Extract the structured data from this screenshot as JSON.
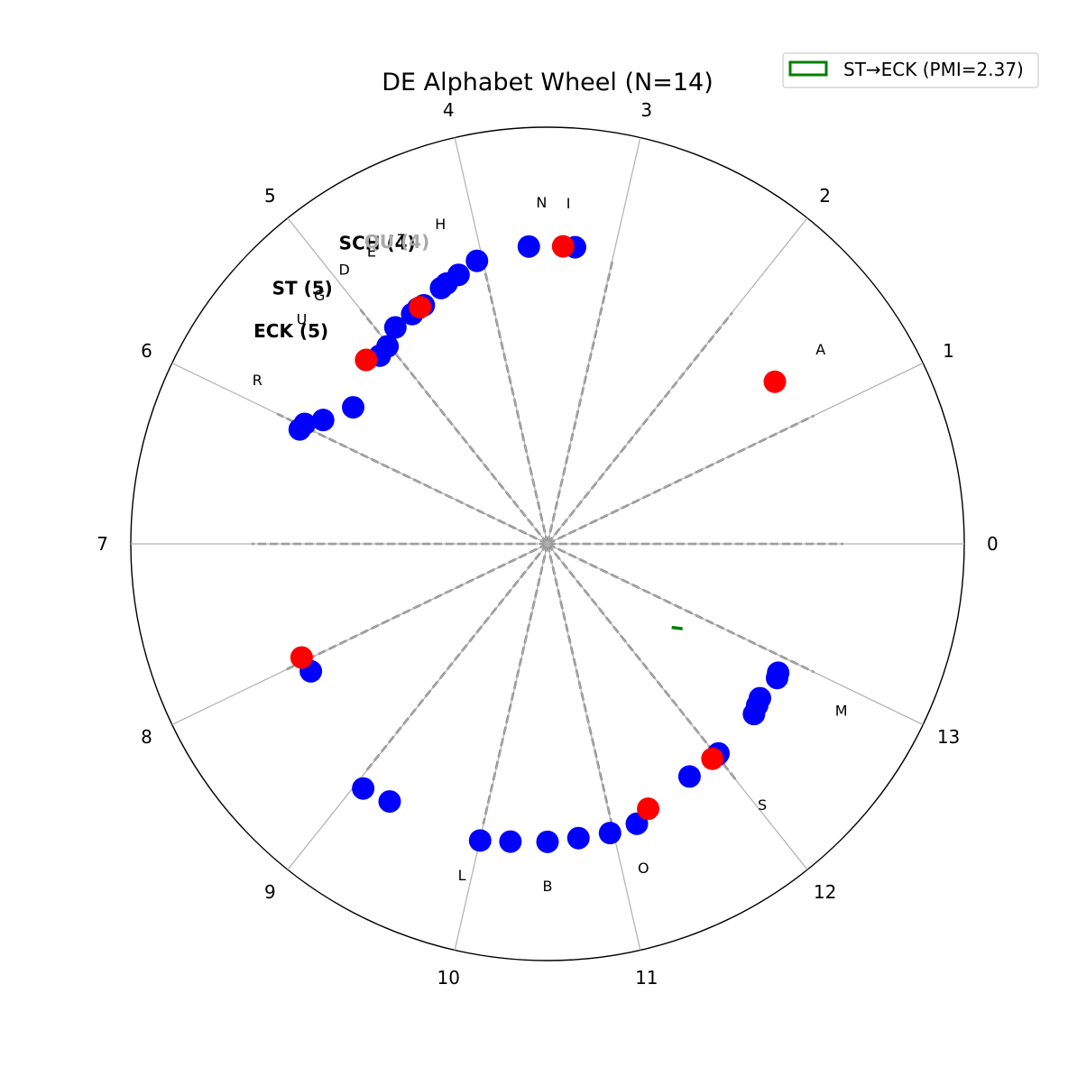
{
  "chart_data": {
    "type": "scatter",
    "projection": "polar",
    "title": "DE Alphabet Wheel (N=14)",
    "sectors": 14,
    "theta_ticks": [
      "0",
      "1",
      "2",
      "3",
      "4",
      "5",
      "6",
      "7",
      "8",
      "9",
      "10",
      "11",
      "12",
      "13"
    ],
    "theta_direction": "counterclockwise",
    "theta_zero": "east",
    "r_range": [
      0,
      1
    ],
    "grid": true,
    "legend": {
      "placement": "top-right",
      "entries": [
        {
          "label": "ST→ECK (PMI=2.37)",
          "color": "#008000",
          "style": "outline-box"
        }
      ]
    },
    "letter_labels": [
      {
        "text": "A",
        "angle": 35.5,
        "r": 0.805
      },
      {
        "text": "N",
        "angle": 91.0,
        "r": 0.82
      },
      {
        "text": "I",
        "angle": 86.5,
        "r": 0.82
      },
      {
        "text": "H",
        "angle": 108.5,
        "r": 0.81
      },
      {
        "text": "T",
        "angle": 115.5,
        "r": 0.81
      },
      {
        "text": "E",
        "angle": 121.0,
        "r": 0.82
      },
      {
        "text": "D",
        "angle": 126.5,
        "r": 0.82
      },
      {
        "text": "G",
        "angle": 132.5,
        "r": 0.81
      },
      {
        "text": "U",
        "angle": 137.5,
        "r": 0.8
      },
      {
        "text": "R",
        "angle": 150.5,
        "r": 0.8
      },
      {
        "text": "L",
        "angle": 255.5,
        "r": 0.82
      },
      {
        "text": "B",
        "angle": 270.0,
        "r": 0.82
      },
      {
        "text": "O",
        "angle": 286.5,
        "r": 0.81
      },
      {
        "text": "S",
        "angle": 309.5,
        "r": 0.81
      },
      {
        "text": "M",
        "angle": 330.5,
        "r": 0.81
      }
    ],
    "ngram_labels": [
      {
        "text": "SCH (4)",
        "angle": 119.5,
        "r": 0.83,
        "style": "bold"
      },
      {
        "text": "QU (4)",
        "angle": 116.5,
        "r": 0.81,
        "style": "faint"
      },
      {
        "text": "ST (5)",
        "angle": 133.8,
        "r": 0.85,
        "style": "bold"
      },
      {
        "text": "ECK (5)",
        "angle": 140.3,
        "r": 0.8,
        "style": "bold"
      }
    ],
    "spokes": [
      {
        "angle": 0,
        "r": 0.71
      },
      {
        "angle": 25.7,
        "r": 0.71
      },
      {
        "angle": 51.4,
        "r": 0.71
      },
      {
        "angle": 77.1,
        "r": 0.7
      },
      {
        "angle": 102.9,
        "r": 0.72
      },
      {
        "angle": 128.6,
        "r": 0.72
      },
      {
        "angle": 154.3,
        "r": 0.72
      },
      {
        "angle": 180,
        "r": 0.71
      },
      {
        "angle": 205.7,
        "r": 0.7
      },
      {
        "angle": 231.4,
        "r": 0.7
      },
      {
        "angle": 257.1,
        "r": 0.69
      },
      {
        "angle": 282.9,
        "r": 0.7
      },
      {
        "angle": 308.6,
        "r": 0.73
      },
      {
        "angle": 334.3,
        "r": 0.71
      }
    ],
    "series": [
      {
        "color": "#0000ff",
        "points": [
          {
            "angle": 93.6,
            "r": 0.715
          },
          {
            "angle": 84.7,
            "r": 0.715
          },
          {
            "angle": 104.0,
            "r": 0.7
          },
          {
            "angle": 108.3,
            "r": 0.68
          },
          {
            "angle": 111.2,
            "r": 0.67
          },
          {
            "angle": 112.6,
            "r": 0.665
          },
          {
            "angle": 117.4,
            "r": 0.645
          },
          {
            "angle": 118.8,
            "r": 0.645
          },
          {
            "angle": 120.5,
            "r": 0.64
          },
          {
            "angle": 125.1,
            "r": 0.635
          },
          {
            "angle": 129.0,
            "r": 0.61
          },
          {
            "angle": 131.7,
            "r": 0.605
          },
          {
            "angle": 144.9,
            "r": 0.57
          },
          {
            "angle": 151.1,
            "r": 0.615
          },
          {
            "angle": 153.7,
            "r": 0.65
          },
          {
            "angle": 155.2,
            "r": 0.655
          },
          {
            "angle": 208.3,
            "r": 0.645
          },
          {
            "angle": 233.0,
            "r": 0.735
          },
          {
            "angle": 238.5,
            "r": 0.725
          },
          {
            "angle": 257.2,
            "r": 0.73
          },
          {
            "angle": 262.9,
            "r": 0.72
          },
          {
            "angle": 270.0,
            "r": 0.715
          },
          {
            "angle": 276.0,
            "r": 0.71
          },
          {
            "angle": 282.2,
            "r": 0.71
          },
          {
            "angle": 287.7,
            "r": 0.705
          },
          {
            "angle": 301.4,
            "r": 0.654
          },
          {
            "angle": 308.8,
            "r": 0.65
          },
          {
            "angle": 309.2,
            "r": 0.649
          },
          {
            "angle": 320.5,
            "r": 0.642
          },
          {
            "angle": 322.4,
            "r": 0.635
          },
          {
            "angle": 324.0,
            "r": 0.63
          },
          {
            "angle": 329.7,
            "r": 0.638
          },
          {
            "angle": 330.8,
            "r": 0.634
          }
        ]
      },
      {
        "color": "#ff0000",
        "points": [
          {
            "angle": 35.5,
            "r": 0.67
          },
          {
            "angle": 87.0,
            "r": 0.715
          },
          {
            "angle": 118.3,
            "r": 0.645
          },
          {
            "angle": 134.6,
            "r": 0.62
          },
          {
            "angle": 204.8,
            "r": 0.65
          },
          {
            "angle": 290.8,
            "r": 0.68
          },
          {
            "angle": 307.5,
            "r": 0.65
          }
        ]
      }
    ],
    "annotation": {
      "angle": 327.2,
      "r": 0.37,
      "color": "#008000",
      "shape": "short-dash"
    }
  }
}
